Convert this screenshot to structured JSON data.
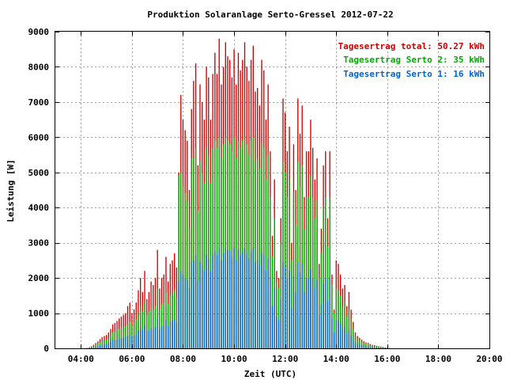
{
  "chart_data": {
    "type": "bar",
    "title": "Produktion Solaranlage Serto-Gressel 2012-07-22",
    "xlabel": "Zeit (UTC)",
    "ylabel": "Leistung [W]",
    "x_tick_labels": [
      "04:00",
      "06:00",
      "08:00",
      "10:00",
      "12:00",
      "14:00",
      "16:00",
      "18:00",
      "20:00"
    ],
    "y_tick_labels": [
      "0",
      "1000",
      "2000",
      "3000",
      "4000",
      "5000",
      "6000",
      "7000",
      "8000",
      "9000"
    ],
    "xlim_hours": [
      3,
      20
    ],
    "ylim": [
      0,
      9000
    ],
    "grid": true,
    "legend_position": "top-right",
    "interval_minutes": 5,
    "start_time": "04:10",
    "series": [
      {
        "name": "Tagesertrag total: 50.27 kWh",
        "color": "#cc0000",
        "values": [
          0,
          10,
          30,
          60,
          100,
          150,
          200,
          260,
          320,
          350,
          380,
          450,
          550,
          680,
          720,
          780,
          850,
          900,
          950,
          1000,
          1200,
          1300,
          1000,
          1100,
          1300,
          1650,
          2000,
          1600,
          2200,
          1400,
          1600,
          1900,
          1800,
          2000,
          2800,
          1700,
          2000,
          2100,
          2600,
          1900,
          2400,
          2500,
          2700,
          2300,
          5000,
          7200,
          6500,
          6200,
          5900,
          4500,
          6800,
          7600,
          8100,
          5200,
          7500,
          7000,
          6500,
          8000,
          7700,
          6500,
          7800,
          8400,
          7800,
          8800,
          7500,
          8000,
          8700,
          8300,
          8200,
          7700,
          8500,
          7500,
          8400,
          7900,
          8200,
          8700,
          8000,
          7600,
          8200,
          8600,
          7300,
          7400,
          6900,
          8200,
          7900,
          6500,
          7500,
          5600,
          3200,
          4800,
          2200,
          2000,
          3700,
          7100,
          6700,
          5600,
          6300,
          3000,
          5800,
          4500,
          7100,
          6100,
          6900,
          4300,
          5600,
          5600,
          6500,
          5700,
          4800,
          5400,
          2400,
          3400,
          5200,
          5600,
          3700,
          5600,
          2100,
          1100,
          2500,
          2400,
          2100,
          1700,
          1800,
          1200,
          1600,
          1100,
          750,
          450,
          350,
          300,
          250,
          200,
          170,
          150,
          120,
          100,
          90,
          70,
          60,
          50,
          40,
          30,
          20,
          10,
          0
        ]
      },
      {
        "name": "Tagesertrag Serto 2: 35 kWh",
        "color": "#00aa00",
        "values": [
          0,
          8,
          20,
          40,
          70,
          100,
          130,
          170,
          210,
          230,
          250,
          300,
          360,
          450,
          480,
          510,
          550,
          580,
          610,
          640,
          700,
          750,
          650,
          720,
          800,
          1000,
          1200,
          1050,
          1300,
          950,
          1050,
          1150,
          1100,
          1200,
          1700,
          1100,
          1250,
          1300,
          1600,
          1250,
          1500,
          1550,
          1650,
          1450,
          4900,
          5000,
          4600,
          4400,
          4200,
          3400,
          5400,
          5400,
          5700,
          3900,
          5300,
          5000,
          4700,
          5700,
          5500,
          4700,
          5700,
          5900,
          5700,
          6000,
          5400,
          5800,
          6000,
          5900,
          5800,
          5600,
          6000,
          5400,
          5900,
          5700,
          5900,
          6000,
          5800,
          5500,
          5900,
          6000,
          5300,
          5400,
          5100,
          5800,
          5700,
          4800,
          5500,
          4300,
          2600,
          3700,
          1900,
          1700,
          3000,
          5300,
          5000,
          4300,
          4800,
          2500,
          4400,
          3500,
          5300,
          4600,
          5200,
          3400,
          4300,
          4300,
          4900,
          4300,
          3700,
          4200,
          2000,
          2700,
          4000,
          4300,
          2900,
          4300,
          1800,
          1000,
          1700,
          1650,
          1500,
          1200,
          1300,
          900,
          1100,
          800,
          550,
          330,
          260,
          220,
          180,
          150,
          125,
          110,
          90,
          75,
          65,
          50,
          45,
          35,
          30,
          20,
          15,
          8,
          0
        ]
      },
      {
        "name": "Tagesertrag Serto 1: 16 kWh",
        "color": "#0066cc",
        "values": [
          0,
          4,
          10,
          20,
          35,
          50,
          65,
          85,
          105,
          115,
          125,
          150,
          180,
          225,
          240,
          255,
          275,
          290,
          305,
          320,
          350,
          375,
          325,
          360,
          400,
          500,
          600,
          525,
          650,
          475,
          525,
          575,
          550,
          600,
          850,
          550,
          625,
          650,
          800,
          625,
          750,
          775,
          825,
          725,
          1900,
          2200,
          2100,
          2000,
          1950,
          1700,
          2450,
          2500,
          2650,
          1900,
          2450,
          2350,
          2200,
          2650,
          2550,
          2200,
          2650,
          2750,
          2650,
          2850,
          2500,
          2700,
          2850,
          2800,
          2750,
          2600,
          2850,
          2500,
          2800,
          2650,
          2750,
          2850,
          2700,
          2550,
          2750,
          2850,
          2450,
          2500,
          2350,
          2700,
          2650,
          2200,
          2550,
          2000,
          1200,
          1700,
          900,
          800,
          1400,
          2450,
          2300,
          2000,
          2200,
          1150,
          2050,
          1600,
          2450,
          2150,
          2400,
          1600,
          2000,
          2000,
          2250,
          2000,
          1700,
          1950,
          950,
          1250,
          1850,
          2000,
          1350,
          2000,
          850,
          450,
          800,
          780,
          700,
          550,
          600,
          420,
          500,
          370,
          250,
          150,
          120,
          100,
          85,
          70,
          58,
          50,
          42,
          35,
          30,
          24,
          20,
          16,
          14,
          9,
          7,
          4,
          0
        ]
      }
    ]
  }
}
